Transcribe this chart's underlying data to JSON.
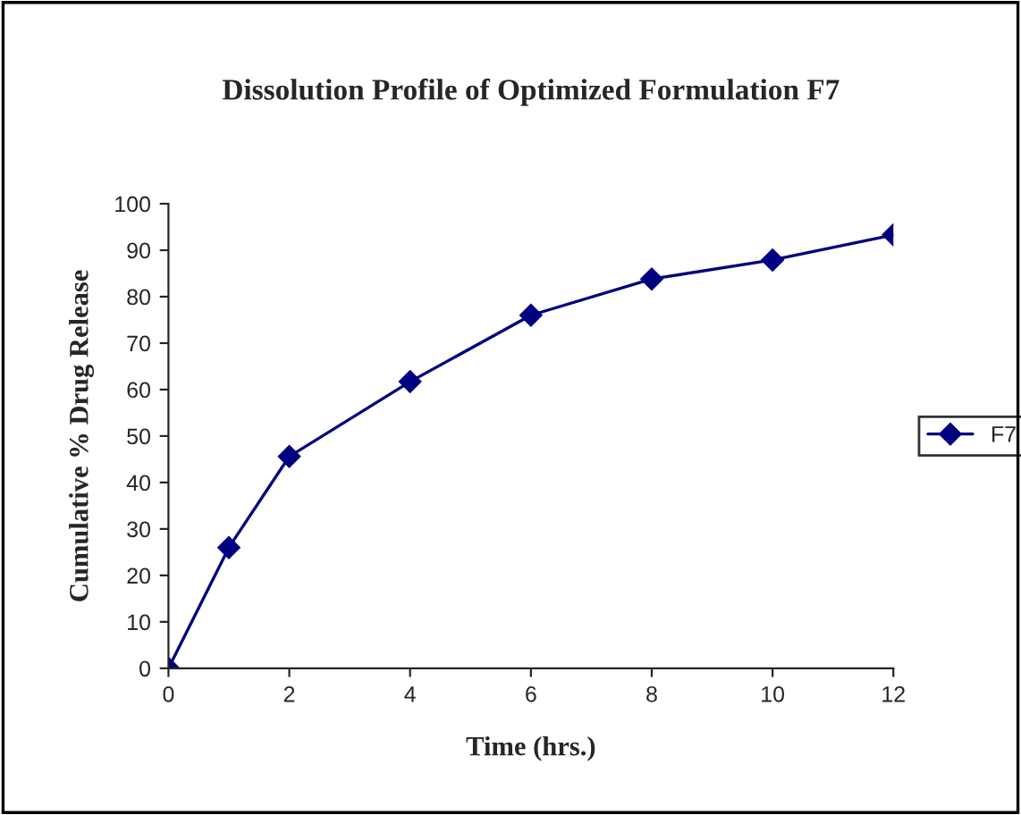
{
  "chart_data": {
    "type": "line",
    "title": "Dissolution Profile of Optimized Formulation F7",
    "xlabel": "Time (hrs.)",
    "ylabel": "Cumulative % Drug Release",
    "x": [
      0,
      1,
      2,
      4,
      6,
      8,
      10,
      12
    ],
    "series": [
      {
        "name": "F7",
        "color": "#000080",
        "values": [
          0,
          26,
          45.6,
          61.7,
          76,
          83.8,
          87.9,
          93.3
        ]
      }
    ],
    "xlim": [
      0,
      12
    ],
    "xticks": [
      0,
      2,
      4,
      6,
      8,
      10,
      12
    ],
    "ylim": [
      0,
      100
    ],
    "yticks": [
      0,
      10,
      20,
      30,
      40,
      50,
      60,
      70,
      80,
      90,
      100
    ],
    "marker": "diamond",
    "line_style": "solid",
    "grid": false,
    "legend": "right"
  }
}
